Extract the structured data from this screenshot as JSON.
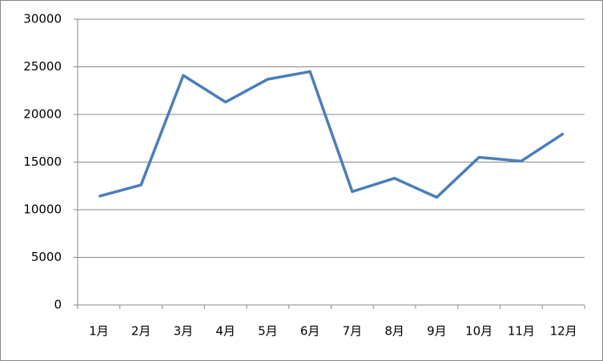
{
  "chart_data": {
    "type": "line",
    "categories": [
      "1月",
      "2月",
      "3月",
      "4月",
      "5月",
      "6月",
      "7月",
      "8月",
      "9月",
      "10月",
      "11月",
      "12月"
    ],
    "series": [
      {
        "color": "#4a7ebb",
        "values": [
          11400,
          12600,
          24100,
          21300,
          23700,
          24500,
          11900,
          13300,
          11300,
          15500,
          15100,
          18000
        ]
      }
    ],
    "ylim": [
      0,
      30000
    ],
    "yticks": [
      0,
      5000,
      10000,
      15000,
      20000,
      25000,
      30000
    ],
    "grid": true
  }
}
